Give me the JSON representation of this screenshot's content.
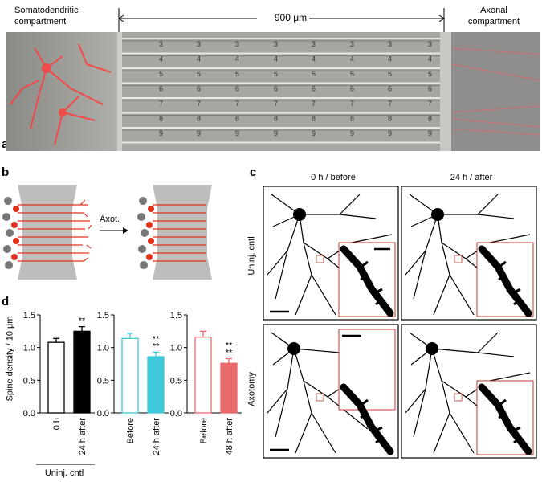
{
  "figure": {
    "panels": {
      "a": {
        "label": "a",
        "left_compartment": "Somatodendritic\ncompartment",
        "right_compartment": "Axonal\ncompartment",
        "distance": "900 μm",
        "channel_numbers": [
          "3",
          "4",
          "5",
          "6",
          "7",
          "8",
          "9"
        ]
      },
      "b": {
        "label": "b",
        "arrow_label": "Axot."
      },
      "c": {
        "label": "c",
        "col_before": "0 h / before",
        "col_after": "24 h / after",
        "row_control": "Uninj. cntl",
        "row_axotomy": "Axotomy"
      },
      "d": {
        "label": "d"
      }
    },
    "colors": {
      "cyan": "#3ec8d8",
      "red": "#e86a6a",
      "black": "#000000",
      "box": "#c0392b"
    }
  },
  "chart_data": [
    {
      "type": "bar",
      "ylabel": "Spine density / 10 μm",
      "ylim": [
        0,
        1.5
      ],
      "yticks": [
        "0.0",
        "0.5",
        "1.0",
        "1.5"
      ],
      "categories": [
        "0 h",
        "24 h after"
      ],
      "values": [
        1.08,
        1.25
      ],
      "errors": [
        0.06,
        0.07
      ],
      "significance": [
        "",
        "**"
      ],
      "group_label": "Uninj. cntl",
      "style": "black"
    },
    {
      "type": "bar",
      "ylim": [
        0,
        1.5
      ],
      "yticks": [
        "0.0",
        "0.5",
        "1.0",
        "1.5"
      ],
      "categories": [
        "Before",
        "24 h after"
      ],
      "values": [
        1.14,
        0.86
      ],
      "errors": [
        0.08,
        0.07
      ],
      "significance": [
        "",
        "**\n**"
      ],
      "style": "cyan"
    },
    {
      "type": "bar",
      "ylim": [
        0,
        1.5
      ],
      "yticks": [
        "0.0",
        "0.5",
        "1.0",
        "1.5"
      ],
      "categories": [
        "Before",
        "48 h after"
      ],
      "values": [
        1.16,
        0.76
      ],
      "errors": [
        0.09,
        0.07
      ],
      "significance": [
        "",
        "**\n**"
      ],
      "style": "red"
    }
  ]
}
